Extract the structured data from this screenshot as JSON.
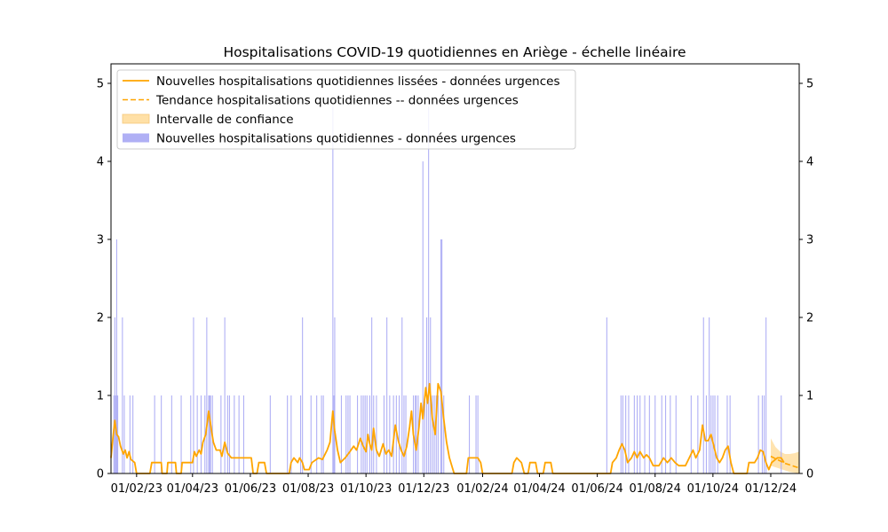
{
  "chart_data": {
    "type": "bar",
    "title": "Hospitalisations COVID-19 quotidiennes en Ariège - échelle linéaire",
    "xlabel": "",
    "ylabel": "",
    "ylim": [
      0,
      5.25
    ],
    "yticks": [
      0,
      1,
      2,
      3,
      4,
      5
    ],
    "xlim": [
      "2023-01-05",
      "2024-12-31"
    ],
    "xticks": [
      {
        "date": "2023-02-01",
        "label": "01/02/23"
      },
      {
        "date": "2023-04-01",
        "label": "01/04/23"
      },
      {
        "date": "2023-06-01",
        "label": "01/06/23"
      },
      {
        "date": "2023-08-01",
        "label": "01/08/23"
      },
      {
        "date": "2023-10-01",
        "label": "01/10/23"
      },
      {
        "date": "2023-12-01",
        "label": "01/12/23"
      },
      {
        "date": "2024-02-01",
        "label": "01/02/24"
      },
      {
        "date": "2024-04-01",
        "label": "01/04/24"
      },
      {
        "date": "2024-06-01",
        "label": "01/06/24"
      },
      {
        "date": "2024-08-01",
        "label": "01/08/24"
      },
      {
        "date": "2024-10-01",
        "label": "01/10/24"
      },
      {
        "date": "2024-12-01",
        "label": "01/12/24"
      }
    ],
    "grid": false,
    "legend_position": "top-left",
    "colors": {
      "bars": "#b0b0f5",
      "smoothed": "#ffa500",
      "trend": "#ffa500",
      "ci_fill": "#ffe0a6"
    },
    "legend": [
      {
        "label": "Nouvelles hospitalisations quotidiennes lissées - données urgences",
        "kind": "line"
      },
      {
        "label": "Tendance hospitalisations quotidiennes -- données urgences",
        "kind": "dashed"
      },
      {
        "label": "Intervalle de confiance",
        "kind": "fill"
      },
      {
        "label": "Nouvelles hospitalisations quotidiennes - données urgences",
        "kind": "bar"
      }
    ],
    "daily_bars": [
      [
        "2023-01-08",
        1
      ],
      [
        "2023-01-09",
        2
      ],
      [
        "2023-01-10",
        1
      ],
      [
        "2023-01-11",
        3
      ],
      [
        "2023-01-12",
        1
      ],
      [
        "2023-01-17",
        2
      ],
      [
        "2023-01-19",
        1
      ],
      [
        "2023-01-25",
        1
      ],
      [
        "2023-01-28",
        1
      ],
      [
        "2023-02-20",
        1
      ],
      [
        "2023-02-27",
        1
      ],
      [
        "2023-03-10",
        1
      ],
      [
        "2023-03-20",
        1
      ],
      [
        "2023-03-30",
        1
      ],
      [
        "2023-04-02",
        2
      ],
      [
        "2023-04-06",
        1
      ],
      [
        "2023-04-10",
        1
      ],
      [
        "2023-04-14",
        1
      ],
      [
        "2023-04-16",
        2
      ],
      [
        "2023-04-18",
        1
      ],
      [
        "2023-04-19",
        1
      ],
      [
        "2023-04-20",
        1
      ],
      [
        "2023-04-22",
        1
      ],
      [
        "2023-05-01",
        1
      ],
      [
        "2023-05-05",
        2
      ],
      [
        "2023-05-08",
        1
      ],
      [
        "2023-05-10",
        1
      ],
      [
        "2023-05-15",
        1
      ],
      [
        "2023-05-20",
        1
      ],
      [
        "2023-05-25",
        1
      ],
      [
        "2023-06-22",
        1
      ],
      [
        "2023-07-10",
        1
      ],
      [
        "2023-07-14",
        1
      ],
      [
        "2023-07-24",
        1
      ],
      [
        "2023-07-26",
        2
      ],
      [
        "2023-08-04",
        1
      ],
      [
        "2023-08-10",
        1
      ],
      [
        "2023-08-15",
        1
      ],
      [
        "2023-08-17",
        1
      ],
      [
        "2023-08-27",
        4.7
      ],
      [
        "2023-08-28",
        1
      ],
      [
        "2023-08-29",
        2
      ],
      [
        "2023-09-05",
        1
      ],
      [
        "2023-09-10",
        1
      ],
      [
        "2023-09-12",
        1
      ],
      [
        "2023-09-14",
        1
      ],
      [
        "2023-09-22",
        1
      ],
      [
        "2023-09-26",
        1
      ],
      [
        "2023-09-28",
        1
      ],
      [
        "2023-09-30",
        1
      ],
      [
        "2023-10-02",
        1
      ],
      [
        "2023-10-05",
        1
      ],
      [
        "2023-10-07",
        2
      ],
      [
        "2023-10-09",
        1
      ],
      [
        "2023-10-12",
        1
      ],
      [
        "2023-10-20",
        1
      ],
      [
        "2023-10-23",
        2
      ],
      [
        "2023-10-26",
        1
      ],
      [
        "2023-10-30",
        1
      ],
      [
        "2023-11-02",
        1
      ],
      [
        "2023-11-05",
        1
      ],
      [
        "2023-11-08",
        2
      ],
      [
        "2023-11-10",
        1
      ],
      [
        "2023-11-12",
        1
      ],
      [
        "2023-11-20",
        1
      ],
      [
        "2023-11-22",
        1
      ],
      [
        "2023-11-23",
        1
      ],
      [
        "2023-11-25",
        1
      ],
      [
        "2023-11-30",
        4
      ],
      [
        "2023-12-02",
        1
      ],
      [
        "2023-12-04",
        2
      ],
      [
        "2023-12-06",
        4.7
      ],
      [
        "2023-12-08",
        2
      ],
      [
        "2023-12-10",
        1
      ],
      [
        "2023-12-12",
        1
      ],
      [
        "2023-12-14",
        1
      ],
      [
        "2023-12-16",
        1
      ],
      [
        "2023-12-19",
        3
      ],
      [
        "2023-12-20",
        3
      ],
      [
        "2023-12-22",
        1
      ],
      [
        "2024-01-18",
        1
      ],
      [
        "2024-01-25",
        1
      ],
      [
        "2024-01-27",
        1
      ],
      [
        "2024-06-11",
        2
      ],
      [
        "2024-06-26",
        1
      ],
      [
        "2024-06-28",
        1
      ],
      [
        "2024-07-01",
        1
      ],
      [
        "2024-07-04",
        1
      ],
      [
        "2024-07-10",
        1
      ],
      [
        "2024-07-13",
        1
      ],
      [
        "2024-07-16",
        1
      ],
      [
        "2024-07-21",
        1
      ],
      [
        "2024-07-26",
        1
      ],
      [
        "2024-08-01",
        1
      ],
      [
        "2024-08-08",
        1
      ],
      [
        "2024-08-12",
        1
      ],
      [
        "2024-08-17",
        1
      ],
      [
        "2024-08-23",
        1
      ],
      [
        "2024-09-08",
        1
      ],
      [
        "2024-09-15",
        1
      ],
      [
        "2024-09-21",
        2
      ],
      [
        "2024-09-24",
        1
      ],
      [
        "2024-09-27",
        2
      ],
      [
        "2024-09-29",
        1
      ],
      [
        "2024-10-01",
        1
      ],
      [
        "2024-10-03",
        1
      ],
      [
        "2024-10-06",
        1
      ],
      [
        "2024-10-16",
        1
      ],
      [
        "2024-10-19",
        1
      ],
      [
        "2024-11-18",
        1
      ],
      [
        "2024-11-22",
        1
      ],
      [
        "2024-11-24",
        1
      ],
      [
        "2024-11-26",
        2
      ],
      [
        "2024-12-12",
        1
      ]
    ],
    "smoothed_series": [
      [
        "2023-01-05",
        0.2
      ],
      [
        "2023-01-07",
        0.45
      ],
      [
        "2023-01-09",
        0.68
      ],
      [
        "2023-01-11",
        0.5
      ],
      [
        "2023-01-13",
        0.47
      ],
      [
        "2023-01-15",
        0.35
      ],
      [
        "2023-01-18",
        0.25
      ],
      [
        "2023-01-20",
        0.3
      ],
      [
        "2023-01-22",
        0.2
      ],
      [
        "2023-01-24",
        0.28
      ],
      [
        "2023-01-26",
        0.18
      ],
      [
        "2023-01-30",
        0.14
      ],
      [
        "2023-02-01",
        0.0
      ],
      [
        "2023-02-15",
        0.0
      ],
      [
        "2023-02-17",
        0.14
      ],
      [
        "2023-02-27",
        0.14
      ],
      [
        "2023-02-28",
        0.0
      ],
      [
        "2023-03-05",
        0.0
      ],
      [
        "2023-03-06",
        0.14
      ],
      [
        "2023-03-14",
        0.14
      ],
      [
        "2023-03-15",
        0.0
      ],
      [
        "2023-03-20",
        0.0
      ],
      [
        "2023-03-21",
        0.14
      ],
      [
        "2023-04-01",
        0.14
      ],
      [
        "2023-04-03",
        0.28
      ],
      [
        "2023-04-05",
        0.22
      ],
      [
        "2023-04-08",
        0.3
      ],
      [
        "2023-04-10",
        0.25
      ],
      [
        "2023-04-12",
        0.4
      ],
      [
        "2023-04-15",
        0.5
      ],
      [
        "2023-04-18",
        0.8
      ],
      [
        "2023-04-21",
        0.55
      ],
      [
        "2023-04-23",
        0.4
      ],
      [
        "2023-04-26",
        0.3
      ],
      [
        "2023-04-30",
        0.3
      ],
      [
        "2023-05-02",
        0.22
      ],
      [
        "2023-05-05",
        0.4
      ],
      [
        "2023-05-08",
        0.26
      ],
      [
        "2023-05-12",
        0.2
      ],
      [
        "2023-06-02",
        0.2
      ],
      [
        "2023-06-04",
        0.0
      ],
      [
        "2023-06-08",
        0.0
      ],
      [
        "2023-06-10",
        0.14
      ],
      [
        "2023-06-16",
        0.14
      ],
      [
        "2023-06-18",
        0.0
      ],
      [
        "2023-07-12",
        0.0
      ],
      [
        "2023-07-14",
        0.14
      ],
      [
        "2023-07-17",
        0.2
      ],
      [
        "2023-07-21",
        0.14
      ],
      [
        "2023-07-23",
        0.2
      ],
      [
        "2023-07-26",
        0.14
      ],
      [
        "2023-07-28",
        0.05
      ],
      [
        "2023-08-02",
        0.05
      ],
      [
        "2023-08-05",
        0.14
      ],
      [
        "2023-08-12",
        0.2
      ],
      [
        "2023-08-16",
        0.18
      ],
      [
        "2023-08-21",
        0.3
      ],
      [
        "2023-08-24",
        0.4
      ],
      [
        "2023-08-27",
        0.8
      ],
      [
        "2023-08-29",
        0.55
      ],
      [
        "2023-09-01",
        0.3
      ],
      [
        "2023-09-04",
        0.14
      ],
      [
        "2023-09-09",
        0.2
      ],
      [
        "2023-09-14",
        0.28
      ],
      [
        "2023-09-18",
        0.35
      ],
      [
        "2023-09-21",
        0.3
      ],
      [
        "2023-09-25",
        0.45
      ],
      [
        "2023-09-28",
        0.35
      ],
      [
        "2023-10-01",
        0.28
      ],
      [
        "2023-10-03",
        0.5
      ],
      [
        "2023-10-05",
        0.38
      ],
      [
        "2023-10-07",
        0.3
      ],
      [
        "2023-10-09",
        0.58
      ],
      [
        "2023-10-12",
        0.3
      ],
      [
        "2023-10-15",
        0.22
      ],
      [
        "2023-10-19",
        0.38
      ],
      [
        "2023-10-22",
        0.25
      ],
      [
        "2023-10-25",
        0.3
      ],
      [
        "2023-10-28",
        0.22
      ],
      [
        "2023-11-01",
        0.62
      ],
      [
        "2023-11-04",
        0.42
      ],
      [
        "2023-11-07",
        0.3
      ],
      [
        "2023-11-10",
        0.22
      ],
      [
        "2023-11-13",
        0.35
      ],
      [
        "2023-11-16",
        0.6
      ],
      [
        "2023-11-18",
        0.8
      ],
      [
        "2023-11-20",
        0.5
      ],
      [
        "2023-11-23",
        0.3
      ],
      [
        "2023-11-26",
        0.6
      ],
      [
        "2023-11-28",
        0.9
      ],
      [
        "2023-11-30",
        0.7
      ],
      [
        "2023-12-03",
        1.1
      ],
      [
        "2023-12-05",
        0.9
      ],
      [
        "2023-12-07",
        1.15
      ],
      [
        "2023-12-10",
        0.7
      ],
      [
        "2023-12-13",
        0.5
      ],
      [
        "2023-12-16",
        1.15
      ],
      [
        "2023-12-19",
        1.05
      ],
      [
        "2023-12-22",
        0.7
      ],
      [
        "2023-12-25",
        0.4
      ],
      [
        "2023-12-28",
        0.2
      ],
      [
        "2024-01-02",
        0.0
      ],
      [
        "2024-01-15",
        0.0
      ],
      [
        "2024-01-17",
        0.2
      ],
      [
        "2024-01-27",
        0.2
      ],
      [
        "2024-01-30",
        0.14
      ],
      [
        "2024-02-01",
        0.0
      ],
      [
        "2024-03-03",
        0.0
      ],
      [
        "2024-03-05",
        0.14
      ],
      [
        "2024-03-08",
        0.2
      ],
      [
        "2024-03-13",
        0.14
      ],
      [
        "2024-03-16",
        0.0
      ],
      [
        "2024-03-20",
        0.0
      ],
      [
        "2024-03-22",
        0.14
      ],
      [
        "2024-03-28",
        0.14
      ],
      [
        "2024-03-30",
        0.0
      ],
      [
        "2024-04-05",
        0.0
      ],
      [
        "2024-04-07",
        0.14
      ],
      [
        "2024-04-13",
        0.14
      ],
      [
        "2024-04-15",
        0.0
      ],
      [
        "2024-06-15",
        0.0
      ],
      [
        "2024-06-17",
        0.14
      ],
      [
        "2024-06-21",
        0.2
      ],
      [
        "2024-06-24",
        0.3
      ],
      [
        "2024-06-27",
        0.38
      ],
      [
        "2024-06-30",
        0.3
      ],
      [
        "2024-07-03",
        0.14
      ],
      [
        "2024-07-07",
        0.2
      ],
      [
        "2024-07-10",
        0.28
      ],
      [
        "2024-07-13",
        0.2
      ],
      [
        "2024-07-16",
        0.28
      ],
      [
        "2024-07-20",
        0.2
      ],
      [
        "2024-07-23",
        0.24
      ],
      [
        "2024-07-26",
        0.2
      ],
      [
        "2024-07-30",
        0.1
      ],
      [
        "2024-08-05",
        0.1
      ],
      [
        "2024-08-10",
        0.2
      ],
      [
        "2024-08-14",
        0.14
      ],
      [
        "2024-08-18",
        0.2
      ],
      [
        "2024-08-22",
        0.14
      ],
      [
        "2024-08-26",
        0.1
      ],
      [
        "2024-09-02",
        0.1
      ],
      [
        "2024-09-06",
        0.2
      ],
      [
        "2024-09-10",
        0.3
      ],
      [
        "2024-09-13",
        0.2
      ],
      [
        "2024-09-17",
        0.3
      ],
      [
        "2024-09-20",
        0.62
      ],
      [
        "2024-09-23",
        0.42
      ],
      [
        "2024-09-26",
        0.42
      ],
      [
        "2024-09-29",
        0.5
      ],
      [
        "2024-10-02",
        0.35
      ],
      [
        "2024-10-05",
        0.2
      ],
      [
        "2024-10-08",
        0.14
      ],
      [
        "2024-10-11",
        0.2
      ],
      [
        "2024-10-14",
        0.3
      ],
      [
        "2024-10-17",
        0.35
      ],
      [
        "2024-10-20",
        0.14
      ],
      [
        "2024-10-23",
        0.0
      ],
      [
        "2024-11-06",
        0.0
      ],
      [
        "2024-11-08",
        0.14
      ],
      [
        "2024-11-14",
        0.14
      ],
      [
        "2024-11-17",
        0.2
      ],
      [
        "2024-11-20",
        0.3
      ],
      [
        "2024-11-23",
        0.28
      ],
      [
        "2024-11-26",
        0.14
      ],
      [
        "2024-11-29",
        0.05
      ],
      [
        "2024-12-02",
        0.14
      ],
      [
        "2024-12-08",
        0.2
      ],
      [
        "2024-12-12",
        0.2
      ],
      [
        "2024-12-15",
        0.14
      ]
    ],
    "trend_series": [
      [
        "2024-12-01",
        0.22
      ],
      [
        "2024-12-06",
        0.19
      ],
      [
        "2024-12-11",
        0.16
      ],
      [
        "2024-12-16",
        0.13
      ],
      [
        "2024-12-21",
        0.11
      ],
      [
        "2024-12-26",
        0.09
      ],
      [
        "2024-12-31",
        0.07
      ]
    ],
    "confidence_interval": [
      [
        "2024-12-01",
        0.1,
        0.45
      ],
      [
        "2024-12-06",
        0.08,
        0.34
      ],
      [
        "2024-12-11",
        0.06,
        0.28
      ],
      [
        "2024-12-16",
        0.04,
        0.25
      ],
      [
        "2024-12-21",
        0.02,
        0.25
      ],
      [
        "2024-12-26",
        0.01,
        0.26
      ],
      [
        "2024-12-31",
        0.0,
        0.28
      ]
    ]
  }
}
